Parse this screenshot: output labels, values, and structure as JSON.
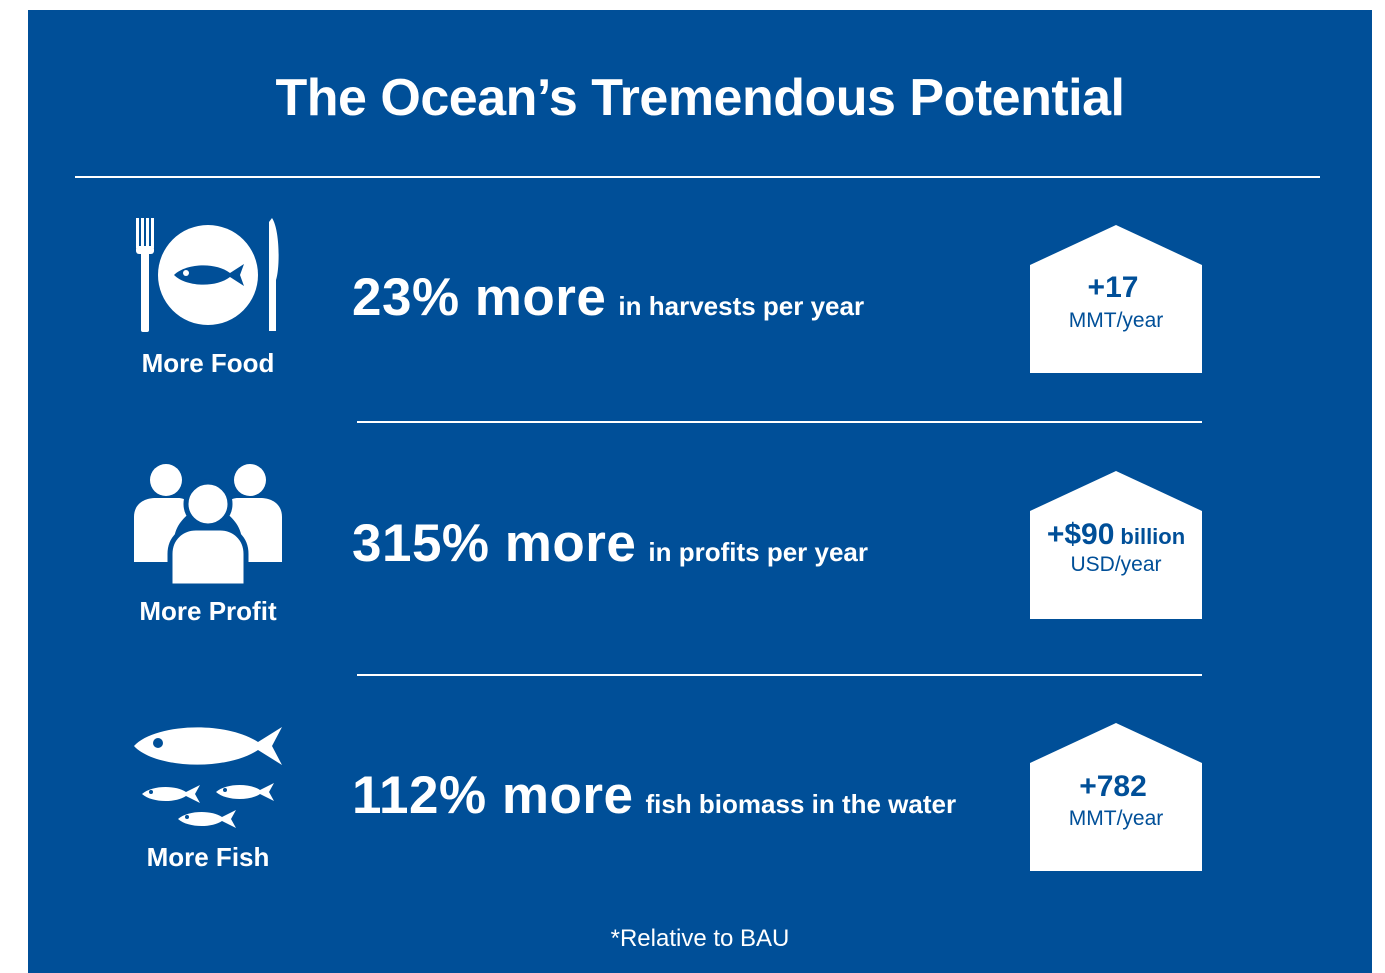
{
  "title": "The Ocean’s Tremendous Potential",
  "rows": [
    {
      "icon": "plate-fish-cutlery-icon",
      "label": "More Food",
      "big": "23% more",
      "small": "in harvests per year",
      "badge_value": "+17",
      "badge_suffix": "",
      "badge_unit": "MMT/year"
    },
    {
      "icon": "people-group-icon",
      "label": "More Profit",
      "big": "315% more",
      "small": "in profits per year",
      "badge_value": "+$90",
      "badge_suffix": "billion",
      "badge_unit": "USD/year"
    },
    {
      "icon": "fish-school-icon",
      "label": "More Fish",
      "big": "112% more",
      "small": "fish biomass in the water",
      "badge_value": "+782",
      "badge_suffix": "",
      "badge_unit": "MMT/year"
    }
  ],
  "footnote": "*Relative to BAU",
  "colors": {
    "background": "#004f98",
    "foreground": "#ffffff"
  }
}
